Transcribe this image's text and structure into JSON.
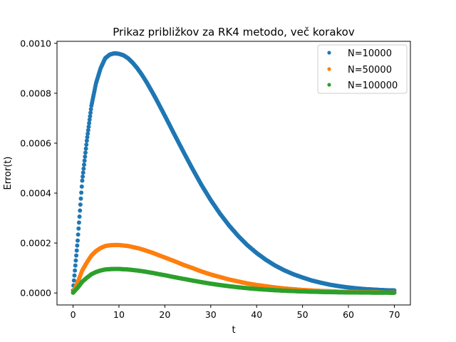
{
  "chart_data": {
    "type": "scatter",
    "title": "Prikaz približkov za RK4 metodo, več korakov",
    "xlabel": "t",
    "ylabel": "Error(t)",
    "xlim": [
      -3.5,
      73.5
    ],
    "ylim": [
      -4.8e-05,
      0.001008
    ],
    "xticks": [
      0,
      10,
      20,
      30,
      40,
      50,
      60,
      70
    ],
    "xtick_labels": [
      "0",
      "10",
      "20",
      "30",
      "40",
      "50",
      "60",
      "70"
    ],
    "yticks": [
      0,
      0.0002,
      0.0004,
      0.0006,
      0.0008,
      0.001
    ],
    "ytick_labels": [
      "0.0000",
      "0.0002",
      "0.0004",
      "0.0006",
      "0.0008",
      "0.0010"
    ],
    "grid": false,
    "legend_position": "top-right",
    "x": [
      0,
      1,
      2,
      3,
      4,
      5,
      6,
      7,
      8,
      9,
      10,
      11,
      12,
      13,
      14,
      15,
      16,
      17,
      18,
      19,
      20,
      22,
      24,
      26,
      28,
      30,
      32,
      34,
      36,
      38,
      40,
      42,
      44,
      46,
      48,
      50,
      52,
      54,
      56,
      58,
      60,
      62,
      64,
      66,
      68,
      70
    ],
    "series": [
      {
        "name": "N=10000",
        "color": "#1f77b4",
        "values": [
          1e-05,
          0.00021,
          0.00045,
          0.00061,
          0.00075,
          0.00084,
          0.0009,
          0.00094,
          0.000955,
          0.00096,
          0.000958,
          0.000952,
          0.00094,
          0.000922,
          0.0009,
          0.000874,
          0.000845,
          0.000813,
          0.00078,
          0.000745,
          0.00071,
          0.000638,
          0.000567,
          0.000498,
          0.000432,
          0.000372,
          0.000318,
          0.00027,
          0.000228,
          0.000191,
          0.00016,
          0.000133,
          0.00011,
          9.1e-05,
          7.5e-05,
          6.2e-05,
          5e-05,
          4.1e-05,
          3.3e-05,
          2.7e-05,
          2.2e-05,
          1.8e-05,
          1.5e-05,
          1.3e-05,
          1.1e-05,
          1e-05
        ]
      },
      {
        "name": "N=50000",
        "color": "#ff7f0e",
        "values": [
          2e-06,
          4.2e-05,
          9e-05,
          0.000122,
          0.00015,
          0.000168,
          0.00018,
          0.000188,
          0.000191,
          0.000192,
          0.000192,
          0.00019,
          0.000188,
          0.000184,
          0.00018,
          0.000175,
          0.000169,
          0.000163,
          0.000156,
          0.000149,
          0.000142,
          0.000128,
          0.000113,
          0.0001,
          8.6e-05,
          7.4e-05,
          6.4e-05,
          5.4e-05,
          4.6e-05,
          3.8e-05,
          3.2e-05,
          2.7e-05,
          2.2e-05,
          1.8e-05,
          1.5e-05,
          1.2e-05,
          1e-05,
          8e-06,
          7e-06,
          5e-06,
          4e-06,
          4e-06,
          3e-06,
          3e-06,
          2e-06,
          2e-06
        ]
      },
      {
        "name": "N=100000",
        "color": "#2ca02c",
        "values": [
          1e-06,
          2.1e-05,
          4.5e-05,
          6.1e-05,
          7.5e-05,
          8.4e-05,
          9e-05,
          9.4e-05,
          9.55e-05,
          9.6e-05,
          9.6e-05,
          9.5e-05,
          9.4e-05,
          9.2e-05,
          9e-05,
          8.74e-05,
          8.45e-05,
          8.13e-05,
          7.8e-05,
          7.45e-05,
          7.1e-05,
          6.38e-05,
          5.67e-05,
          4.98e-05,
          4.32e-05,
          3.72e-05,
          3.18e-05,
          2.7e-05,
          2.28e-05,
          1.91e-05,
          1.6e-05,
          1.33e-05,
          1.1e-05,
          9.1e-06,
          7.5e-06,
          6.2e-06,
          5e-06,
          4.1e-06,
          3.3e-06,
          2.7e-06,
          2.2e-06,
          1.8e-06,
          1.5e-06,
          1.3e-06,
          1.1e-06,
          1e-06
        ]
      }
    ]
  }
}
